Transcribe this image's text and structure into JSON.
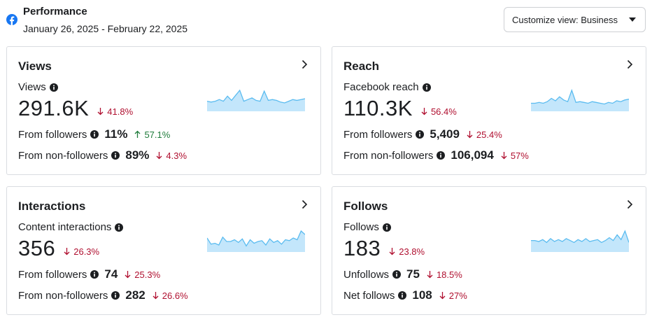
{
  "header": {
    "title": "Performance",
    "date_range": "January 26, 2025 - February 22, 2025",
    "customize_label": "Customize view: Business"
  },
  "colors": {
    "decrease": "#b01030",
    "increase": "#1e7b3a",
    "sparkline_fill": "#c3e6fb",
    "sparkline_stroke": "#5bbcf0",
    "facebook_blue": "#1877f2"
  },
  "cards": [
    {
      "title": "Views",
      "metric_label": "Views",
      "value": "291.6K",
      "change": "41.8%",
      "direction": "down",
      "rows": [
        {
          "label": "From followers",
          "value": "11%",
          "change": "57.1%",
          "direction": "up"
        },
        {
          "label": "From non-followers",
          "value": "89%",
          "change": "4.3%",
          "direction": "down"
        }
      ],
      "sparkline": [
        12,
        11,
        12,
        14,
        12,
        18,
        13,
        19,
        25,
        12,
        14,
        16,
        13,
        12,
        24,
        13,
        14,
        13,
        11,
        10,
        12,
        14,
        13,
        14,
        15
      ]
    },
    {
      "title": "Reach",
      "metric_label": "Facebook reach",
      "value": "110.3K",
      "change": "56.4%",
      "direction": "down",
      "rows": [
        {
          "label": "From followers",
          "value": "5,409",
          "change": "25.4%",
          "direction": "down"
        },
        {
          "label": "From non-followers",
          "value": "106,094",
          "change": "57%",
          "direction": "down"
        }
      ],
      "sparkline": [
        10,
        10,
        11,
        10,
        12,
        16,
        13,
        18,
        14,
        12,
        26,
        11,
        12,
        11,
        10,
        12,
        11,
        10,
        9,
        11,
        10,
        13,
        12,
        14,
        15
      ]
    },
    {
      "title": "Interactions",
      "metric_label": "Content interactions",
      "value": "356",
      "change": "26.3%",
      "direction": "down",
      "rows": [
        {
          "label": "From followers",
          "value": "74",
          "change": "25.3%",
          "direction": "down"
        },
        {
          "label": "From non-followers",
          "value": "282",
          "change": "26.6%",
          "direction": "down"
        }
      ],
      "sparkline": [
        16,
        9,
        10,
        8,
        17,
        12,
        12,
        14,
        11,
        15,
        7,
        14,
        10,
        12,
        13,
        8,
        15,
        11,
        13,
        9,
        14,
        13,
        16,
        14,
        24,
        20
      ]
    },
    {
      "title": "Follows",
      "metric_label": "Follows",
      "value": "183",
      "change": "23.8%",
      "direction": "down",
      "rows": [
        {
          "label": "Unfollows",
          "value": "75",
          "change": "18.5%",
          "direction": "down"
        },
        {
          "label": "Net follows",
          "value": "108",
          "change": "27%",
          "direction": "down"
        }
      ],
      "sparkline": [
        12,
        12,
        11,
        13,
        10,
        14,
        11,
        13,
        11,
        14,
        12,
        10,
        13,
        11,
        14,
        11,
        12,
        13,
        10,
        12,
        15,
        12,
        18,
        13,
        22,
        10
      ]
    }
  ]
}
